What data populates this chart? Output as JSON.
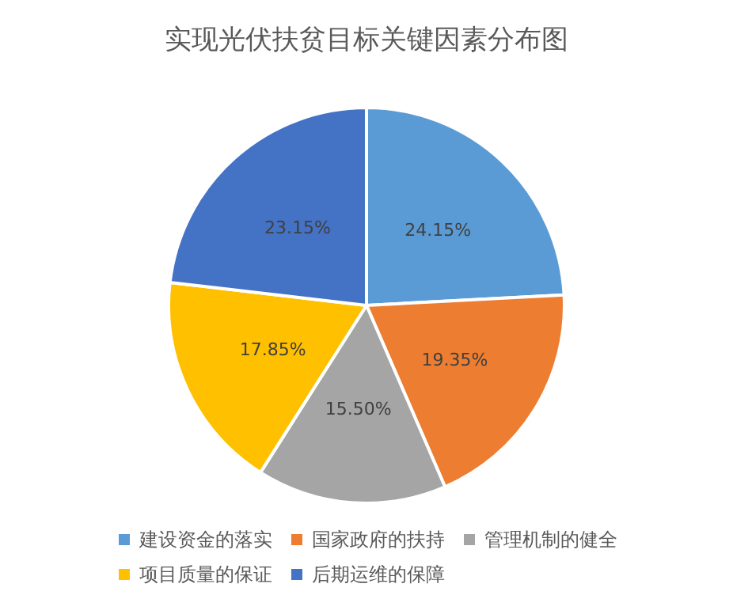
{
  "chart_data": {
    "type": "pie",
    "title": "实现光伏扶贫目标关键因素分布图",
    "categories": [
      "建设资金的落实",
      "国家政府的扶持",
      "管理机制的健全",
      "项目质量的保证",
      "后期运维的保障"
    ],
    "values": [
      24.15,
      19.35,
      15.5,
      17.85,
      23.15
    ],
    "colors": [
      "#5b9bd5",
      "#ed7d31",
      "#a5a5a5",
      "#ffc000",
      "#4472c4"
    ],
    "value_labels": [
      "24.15%",
      "19.35%",
      "15.50%",
      "17.85%",
      "23.15%"
    ],
    "legend": "bottom"
  }
}
